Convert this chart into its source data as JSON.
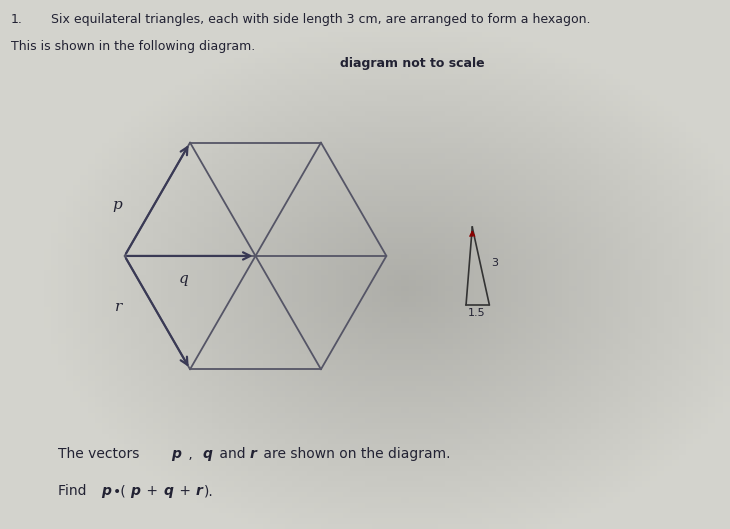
{
  "bg_color_left": "#d8d8cc",
  "bg_color_right": "#b0b0a0",
  "hex_line_color": "#555566",
  "arrow_color": "#3a3a55",
  "text_color": "#222233",
  "title_number": "1.",
  "title_line1": "Six equilateral triangles, each with side length 3 cm, are arranged to form a hexagon.",
  "title_line2": "This is shown in the following diagram.",
  "note": "diagram not to scale",
  "vectors_text": "The vectors p , q and r are shown on the diagram.",
  "label_p": "p",
  "label_q": "q",
  "label_r": "r",
  "inset_label_3": "3",
  "inset_label_15": "1.5",
  "side": 1.0
}
